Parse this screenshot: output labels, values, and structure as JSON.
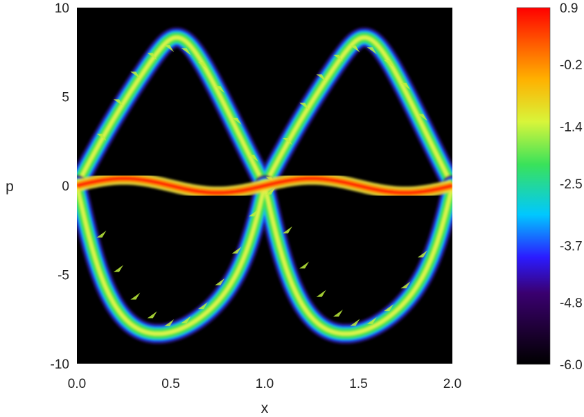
{
  "chart_data": {
    "type": "heatmap",
    "xlabel": "x",
    "ylabel": "p",
    "xlim": [
      0.0,
      2.0
    ],
    "ylim": [
      -10,
      10
    ],
    "x_ticks": [
      "0.0",
      "0.5",
      "1.0",
      "1.5",
      "2.0"
    ],
    "y_ticks": [
      "10",
      "5",
      "0",
      "-5",
      "-10"
    ],
    "x_tick_values": [
      0.0,
      0.5,
      1.0,
      1.5,
      2.0
    ],
    "y_tick_values": [
      10,
      5,
      0,
      -5,
      -10
    ],
    "colorbar": {
      "range": [
        -6.0,
        0.9
      ],
      "ticks": [
        "0.9",
        "-0.2",
        "-1.4",
        "-2.5",
        "-3.7",
        "-4.8",
        "-6.0"
      ],
      "tick_values": [
        0.9,
        -0.2,
        -1.4,
        -2.5,
        -3.7,
        -4.8,
        -6.0
      ],
      "colormap": [
        "#000000",
        "#3a0060",
        "#2b1bff",
        "#00d5ff",
        "#39e25a",
        "#e6f53a",
        "#ff8a00",
        "#ff0000"
      ]
    },
    "background_color": "#000000",
    "grid": false
  }
}
